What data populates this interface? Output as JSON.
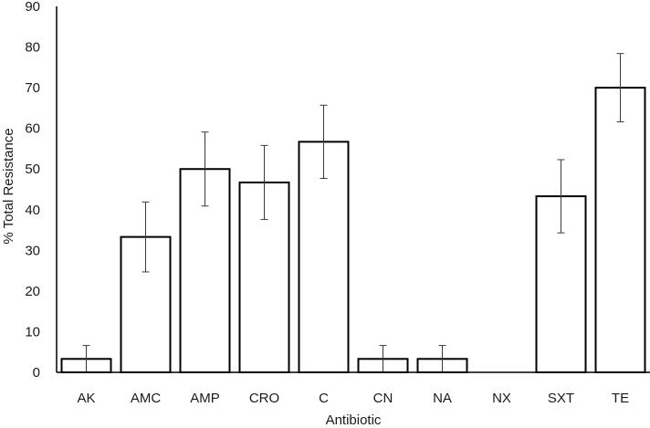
{
  "chart_data": {
    "type": "bar",
    "title": "",
    "xlabel": "Antibiotic",
    "ylabel": "% Total Resistance",
    "ylim": [
      0,
      90
    ],
    "yticks": [
      0,
      10,
      20,
      30,
      40,
      50,
      60,
      70,
      80,
      90
    ],
    "grid": false,
    "legend": "none",
    "categories": [
      "AK",
      "AMC",
      "AMP",
      "CRO",
      "C",
      "CN",
      "NA",
      "NX",
      "SXT",
      "TE"
    ],
    "values": [
      3.3,
      33.3,
      50.0,
      46.7,
      56.7,
      3.3,
      3.3,
      0,
      43.3,
      70.0
    ],
    "error": [
      3.3,
      8.6,
      9.1,
      9.1,
      9.0,
      3.3,
      3.3,
      0,
      9.0,
      8.4
    ],
    "colors": {
      "bar_fill": "#ffffff",
      "bar_stroke": "#000000",
      "axis": "#000000",
      "error_bar": "#3a3a3a"
    }
  }
}
